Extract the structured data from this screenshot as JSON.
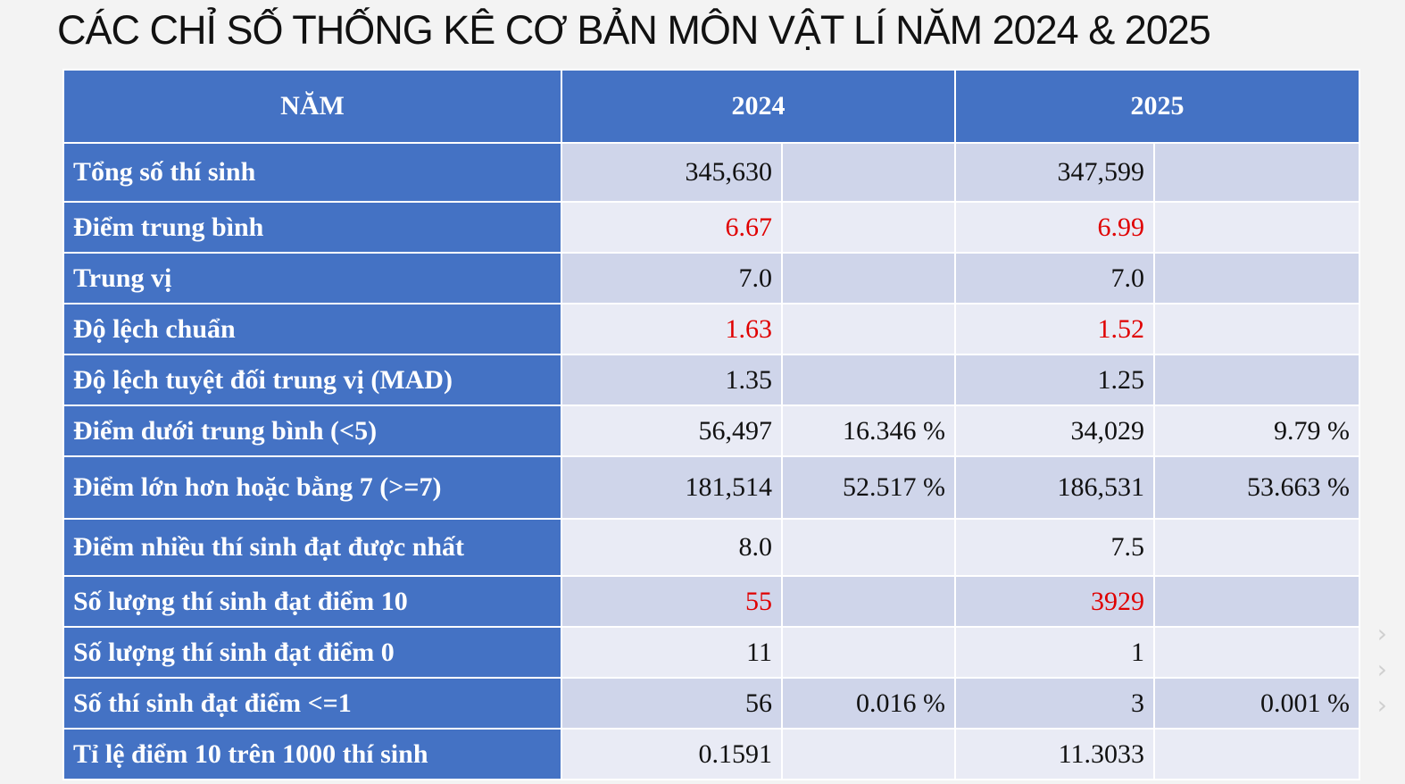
{
  "title": "CÁC CHỈ SỐ THỐNG KÊ CƠ BẢN MÔN VẬT LÍ NĂM 2024 & 2025",
  "header": {
    "col_label": "NĂM",
    "year_a": "2024",
    "year_b": "2025"
  },
  "rows": [
    {
      "label": "Tổng số thí sinh",
      "v2024": "345,630",
      "p2024": "",
      "v2025": "347,599",
      "p2025": "",
      "highlight": false
    },
    {
      "label": "Điểm trung bình",
      "v2024": "6.67",
      "p2024": "",
      "v2025": "6.99",
      "p2025": "",
      "highlight": true
    },
    {
      "label": "Trung vị",
      "v2024": "7.0",
      "p2024": "",
      "v2025": "7.0",
      "p2025": "",
      "highlight": false
    },
    {
      "label": "Độ lệch chuẩn",
      "v2024": "1.63",
      "p2024": "",
      "v2025": "1.52",
      "p2025": "",
      "highlight": true
    },
    {
      "label": "Độ lệch tuyệt đối trung vị (MAD)",
      "v2024": "1.35",
      "p2024": "",
      "v2025": "1.25",
      "p2025": "",
      "highlight": false
    },
    {
      "label": "Điểm dưới trung bình (<5)",
      "v2024": "56,497",
      "p2024": "16.346 %",
      "v2025": "34,029",
      "p2025": "9.79 %",
      "highlight": false
    },
    {
      "label": "Điểm lớn hơn hoặc bằng 7 (>=7)",
      "v2024": "181,514",
      "p2024": "52.517 %",
      "v2025": "186,531",
      "p2025": "53.663 %",
      "highlight": false
    },
    {
      "label": "Điểm nhiều thí sinh đạt được nhất",
      "v2024": "8.0",
      "p2024": "",
      "v2025": "7.5",
      "p2025": "",
      "highlight": false
    },
    {
      "label": "Số lượng thí sinh đạt điểm 10",
      "v2024": "55",
      "p2024": "",
      "v2025": "3929",
      "p2025": "",
      "highlight": true
    },
    {
      "label": "Số lượng thí sinh đạt điểm 0",
      "v2024": "11",
      "p2024": "",
      "v2025": "1",
      "p2025": "",
      "highlight": false
    },
    {
      "label": "Số thí sinh đạt điểm <=1",
      "v2024": "56",
      "p2024": "0.016 %",
      "v2025": "3",
      "p2025": "0.001 %",
      "highlight": false
    },
    {
      "label": "Tỉ lệ điểm 10 trên 1000 thí sinh",
      "v2024": "0.1591",
      "p2024": "",
      "v2025": "11.3033",
      "p2025": "",
      "highlight": false
    }
  ],
  "colors": {
    "header_bg": "#4472c4",
    "row_odd": "#cfd5ea",
    "row_even": "#e9ebf5",
    "highlight_text": "#e00000"
  }
}
